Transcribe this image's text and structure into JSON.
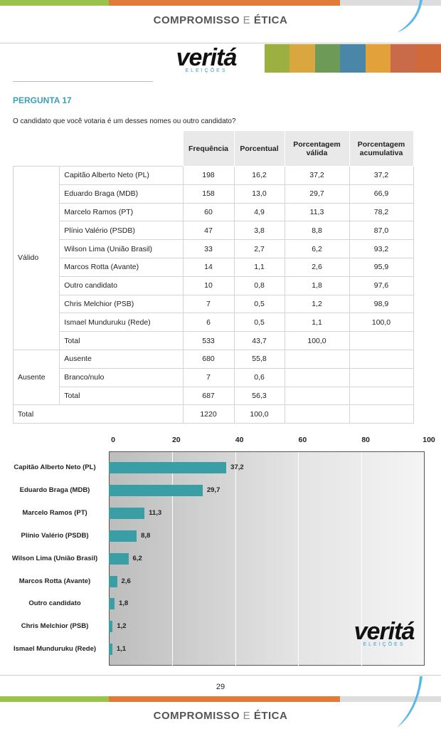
{
  "header": {
    "brand": "COMPROMISSO",
    "connector": "E",
    "brand2": "ÉTICA"
  },
  "logo": {
    "brand": "veritá",
    "sub": "ELEIÇÕES"
  },
  "question": {
    "number": "PERGUNTA 17",
    "text": "O candidato que você votaria é um desses nomes ou outro candidato?"
  },
  "table": {
    "columns": [
      "Frequência",
      "Porcentual",
      "Porcentagem válida",
      "Porcentagem acumulativa"
    ],
    "groups": [
      {
        "label": "Válido",
        "rows": [
          [
            "Capitão Alberto Neto (PL)",
            "198",
            "16,2",
            "37,2",
            "37,2"
          ],
          [
            "Eduardo Braga (MDB)",
            "158",
            "13,0",
            "29,7",
            "66,9"
          ],
          [
            "Marcelo Ramos (PT)",
            "60",
            "4,9",
            "11,3",
            "78,2"
          ],
          [
            "Plínio Valério (PSDB)",
            "47",
            "3,8",
            "8,8",
            "87,0"
          ],
          [
            "Wilson Lima (União Brasil)",
            "33",
            "2,7",
            "6,2",
            "93,2"
          ],
          [
            "Marcos Rotta (Avante)",
            "14",
            "1,1",
            "2,6",
            "95,9"
          ],
          [
            "Outro candidato",
            "10",
            "0,8",
            "1,8",
            "97,6"
          ],
          [
            "Chris Melchior (PSB)",
            "7",
            "0,5",
            "1,2",
            "98,9"
          ],
          [
            "Ismael Munduruku (Rede)",
            "6",
            "0,5",
            "1,1",
            "100,0"
          ],
          [
            "Total",
            "533",
            "43,7",
            "100,0"
          ]
        ]
      },
      {
        "label": "Ausente",
        "rows": [
          [
            "Ausente",
            "680",
            "55,8"
          ],
          [
            "Branco/nulo",
            "7",
            "0,6"
          ],
          [
            "Total",
            "687",
            "56,3"
          ]
        ]
      }
    ],
    "total": [
      "Total",
      "1220",
      "100,0"
    ]
  },
  "chart_data": {
    "type": "bar",
    "orientation": "horizontal",
    "categories": [
      "Capitão Alberto Neto (PL)",
      "Eduardo Braga (MDB)",
      "Marcelo Ramos (PT)",
      "Plínio Valério (PSDB)",
      "Wilson Lima (União Brasil)",
      "Marcos Rotta (Avante)",
      "Outro candidato",
      "Chris Melchior (PSB)",
      "Ismael Munduruku (Rede)"
    ],
    "values": [
      37.2,
      29.7,
      11.3,
      8.8,
      6.2,
      2.6,
      1.8,
      1.2,
      1.1
    ],
    "value_labels": [
      "37,2",
      "29,7",
      "11,3",
      "8,8",
      "6,2",
      "2,6",
      "1,8",
      "1,2",
      "1,1"
    ],
    "color": "#3a9ea5",
    "xlim": [
      0,
      100
    ],
    "xticks": [
      0,
      20,
      40,
      60,
      80,
      100
    ],
    "grid": true
  },
  "watermark": {
    "brand": "veritá",
    "sub": "ELEIÇÕES"
  },
  "footer": {
    "page": "29",
    "brand": "COMPROMISSO",
    "connector": "E",
    "brand2": "ÉTICA"
  }
}
